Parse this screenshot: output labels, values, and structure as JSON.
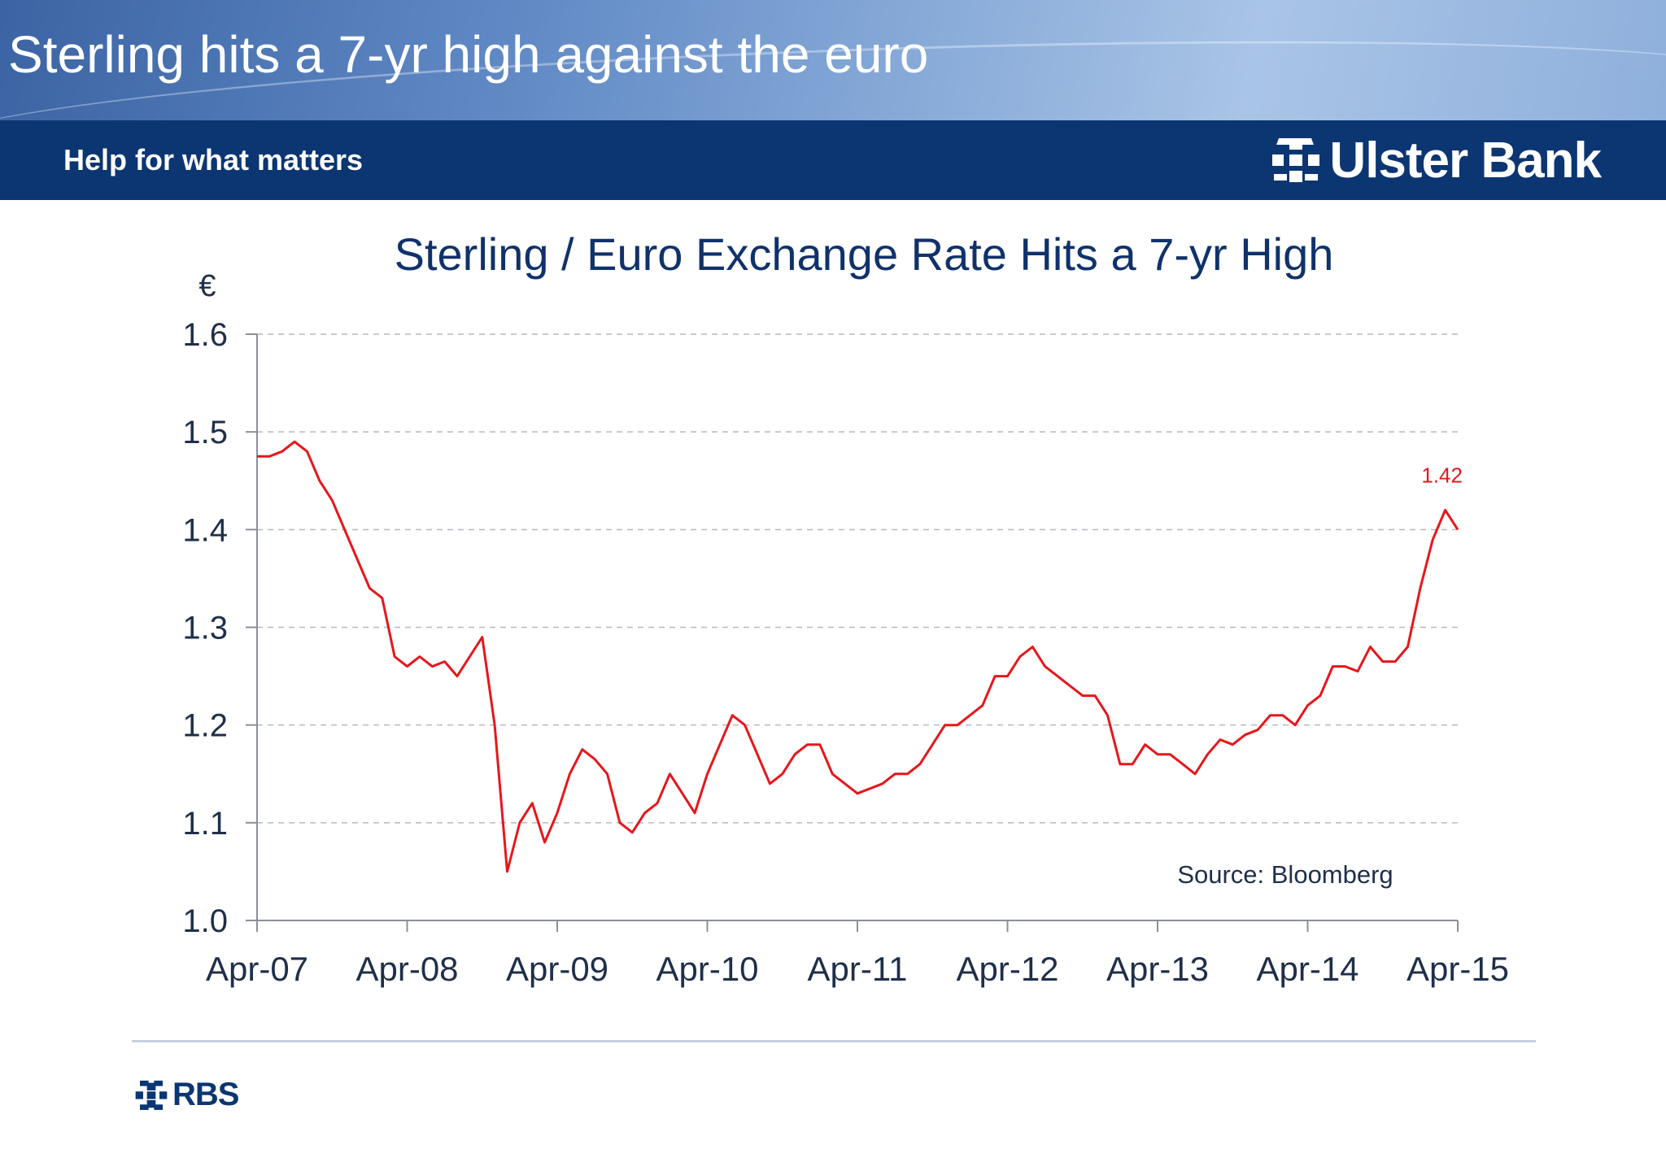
{
  "slide": {
    "title": "Sterling hits a 7-yr high against the euro",
    "tagline": "Help for what matters",
    "brand": "Ulster Bank",
    "footer_brand": "RBS",
    "colors": {
      "banner_dark": "#0c3672",
      "series_line": "#e8161b",
      "axis_text": "#1f2f4a",
      "title_text": "#10326b"
    },
    "icons": [
      "ulster-bank-logo-icon",
      "rbs-logo-icon"
    ]
  },
  "chart_data": {
    "type": "line",
    "title": "Sterling / Euro Exchange Rate Hits a 7-yr High",
    "ylabel": "€",
    "ylim": [
      1.0,
      1.6
    ],
    "yticks": [
      "1.0",
      "1.1",
      "1.2",
      "1.3",
      "1.4",
      "1.5",
      "1.6"
    ],
    "xlim": [
      "2007-04",
      "2015-04"
    ],
    "xticks": [
      "Apr-07",
      "Apr-08",
      "Apr-09",
      "Apr-10",
      "Apr-11",
      "Apr-12",
      "Apr-13",
      "Apr-14",
      "Apr-15"
    ],
    "grid": "horizontal-dashed",
    "annotation": {
      "text": "1.42",
      "x": "2015-03",
      "y": 1.42
    },
    "source": "Source: Bloomberg",
    "series": [
      {
        "x": [
          "2007-04",
          "2007-05",
          "2007-06",
          "2007-07",
          "2007-08",
          "2007-09",
          "2007-10",
          "2007-11",
          "2007-12",
          "2008-01",
          "2008-02",
          "2008-03",
          "2008-04",
          "2008-05",
          "2008-06",
          "2008-07",
          "2008-08",
          "2008-09",
          "2008-10",
          "2008-11",
          "2008-12",
          "2009-01",
          "2009-02",
          "2009-03",
          "2009-04",
          "2009-05",
          "2009-06",
          "2009-07",
          "2009-08",
          "2009-09",
          "2009-10",
          "2009-11",
          "2009-12",
          "2010-01",
          "2010-02",
          "2010-03",
          "2010-04",
          "2010-05",
          "2010-06",
          "2010-07",
          "2010-08",
          "2010-09",
          "2010-10",
          "2010-11",
          "2010-12",
          "2011-01",
          "2011-02",
          "2011-03",
          "2011-04",
          "2011-05",
          "2011-06",
          "2011-07",
          "2011-08",
          "2011-09",
          "2011-10",
          "2011-11",
          "2011-12",
          "2012-01",
          "2012-02",
          "2012-03",
          "2012-04",
          "2012-05",
          "2012-06",
          "2012-07",
          "2012-08",
          "2012-09",
          "2012-10",
          "2012-11",
          "2012-12",
          "2013-01",
          "2013-02",
          "2013-03",
          "2013-04",
          "2013-05",
          "2013-06",
          "2013-07",
          "2013-08",
          "2013-09",
          "2013-10",
          "2013-11",
          "2013-12",
          "2014-01",
          "2014-02",
          "2014-03",
          "2014-04",
          "2014-05",
          "2014-06",
          "2014-07",
          "2014-08",
          "2014-09",
          "2014-10",
          "2014-11",
          "2014-12",
          "2015-01",
          "2015-02",
          "2015-03",
          "2015-04"
        ],
        "values": [
          1.475,
          1.475,
          1.48,
          1.49,
          1.48,
          1.45,
          1.43,
          1.4,
          1.37,
          1.34,
          1.33,
          1.27,
          1.26,
          1.27,
          1.26,
          1.265,
          1.25,
          1.27,
          1.29,
          1.2,
          1.05,
          1.1,
          1.12,
          1.08,
          1.11,
          1.15,
          1.175,
          1.165,
          1.15,
          1.1,
          1.09,
          1.11,
          1.12,
          1.15,
          1.13,
          1.11,
          1.15,
          1.18,
          1.21,
          1.2,
          1.17,
          1.14,
          1.15,
          1.17,
          1.18,
          1.18,
          1.15,
          1.14,
          1.13,
          1.135,
          1.14,
          1.15,
          1.15,
          1.16,
          1.18,
          1.2,
          1.2,
          1.21,
          1.22,
          1.25,
          1.25,
          1.27,
          1.28,
          1.26,
          1.25,
          1.24,
          1.23,
          1.23,
          1.21,
          1.16,
          1.16,
          1.18,
          1.17,
          1.17,
          1.16,
          1.15,
          1.17,
          1.185,
          1.18,
          1.19,
          1.195,
          1.21,
          1.21,
          1.2,
          1.22,
          1.23,
          1.26,
          1.26,
          1.255,
          1.28,
          1.265,
          1.265,
          1.28,
          1.34,
          1.39,
          1.42,
          1.4
        ]
      }
    ]
  }
}
